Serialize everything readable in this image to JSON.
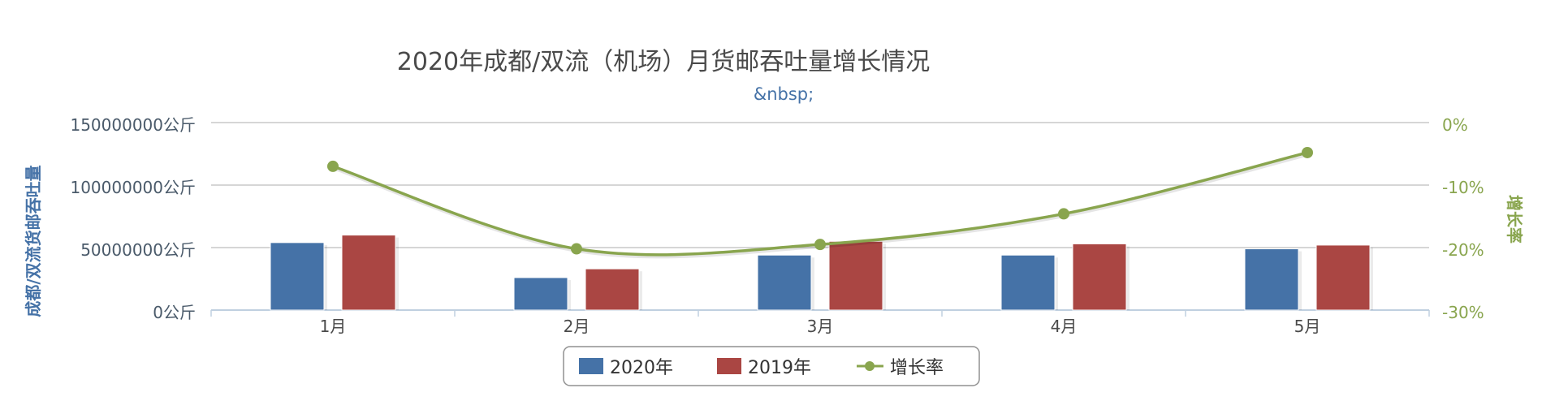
{
  "chart_data": {
    "type": "bar",
    "title": "2020年成都/双流（机场）月货邮吞吐量增长情况",
    "subtitle": "&nbsp;",
    "categories": [
      "1月",
      "2月",
      "3月",
      "4月",
      "5月"
    ],
    "series": [
      {
        "name": "2020年",
        "type": "bar",
        "axis": "left",
        "color": "#4572a7",
        "values": [
          54000000,
          26000000,
          44000000,
          44000000,
          49000000
        ]
      },
      {
        "name": "2019年",
        "type": "bar",
        "axis": "left",
        "color": "#aa4643",
        "values": [
          60000000,
          33000000,
          55000000,
          53000000,
          52000000
        ]
      },
      {
        "name": "增长率",
        "type": "line",
        "axis": "right",
        "color": "#89a54e",
        "values": [
          -7,
          -20.2,
          -19.5,
          -14.6,
          -4.8
        ]
      }
    ],
    "y_left": {
      "label": "成都/双流货邮吞吐量",
      "ylim": [
        0,
        150000000
      ],
      "ticks": [
        "0公斤",
        "50000000公斤",
        "100000000公斤",
        "150000000公斤"
      ]
    },
    "y_right": {
      "label": "增长率",
      "ylim": [
        -30,
        0
      ],
      "ticks": [
        "-30%",
        "-20%",
        "-10%",
        "0%"
      ]
    },
    "grid": true,
    "legend_position": "bottom-center"
  }
}
